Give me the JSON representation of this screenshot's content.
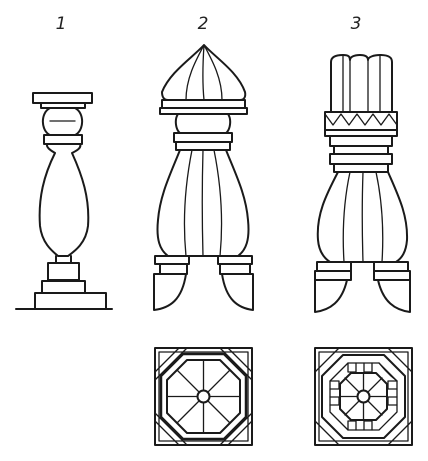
{
  "figure": {
    "labels": [
      "1",
      "2",
      "3"
    ],
    "colors": {
      "ink": "#1a1a1a",
      "paper": "#ffffff"
    }
  }
}
